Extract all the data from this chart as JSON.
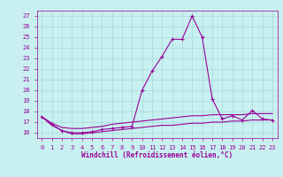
{
  "xlabel": "Windchill (Refroidissement éolien,°C)",
  "background_color": "#c8f0f0",
  "grid_color": "#a8d8d8",
  "line_color": "#990099",
  "x": [
    0,
    1,
    2,
    3,
    4,
    5,
    6,
    7,
    8,
    9,
    10,
    11,
    12,
    13,
    14,
    15,
    16,
    17,
    18,
    19,
    20,
    21,
    22,
    23
  ],
  "y_main": [
    17.5,
    16.8,
    16.2,
    16.0,
    16.0,
    16.1,
    16.3,
    16.4,
    16.5,
    16.6,
    20.0,
    21.8,
    23.2,
    24.8,
    24.8,
    27.0,
    25.0,
    19.2,
    17.3,
    17.6,
    17.2,
    18.1,
    17.3,
    17.2
  ],
  "y_upper": [
    17.5,
    16.9,
    16.5,
    16.4,
    16.4,
    16.5,
    16.6,
    16.8,
    16.9,
    17.0,
    17.1,
    17.2,
    17.3,
    17.4,
    17.5,
    17.6,
    17.6,
    17.7,
    17.7,
    17.7,
    17.7,
    17.8,
    17.8,
    17.8
  ],
  "y_lower": [
    17.5,
    16.7,
    16.2,
    15.9,
    15.9,
    16.0,
    16.1,
    16.2,
    16.3,
    16.4,
    16.5,
    16.6,
    16.7,
    16.7,
    16.8,
    16.9,
    16.9,
    17.0,
    17.0,
    17.1,
    17.1,
    17.2,
    17.2,
    17.2
  ],
  "ylim": [
    15.5,
    27.5
  ],
  "xlim": [
    -0.5,
    23.5
  ],
  "yticks": [
    16,
    17,
    18,
    19,
    20,
    21,
    22,
    23,
    24,
    25,
    26,
    27
  ],
  "xticks": [
    0,
    1,
    2,
    3,
    4,
    5,
    6,
    7,
    8,
    9,
    10,
    11,
    12,
    13,
    14,
    15,
    16,
    17,
    18,
    19,
    20,
    21,
    22,
    23
  ],
  "tick_fontsize": 5.0,
  "xlabel_fontsize": 5.5,
  "marker_size": 3.0,
  "line_width": 0.8
}
